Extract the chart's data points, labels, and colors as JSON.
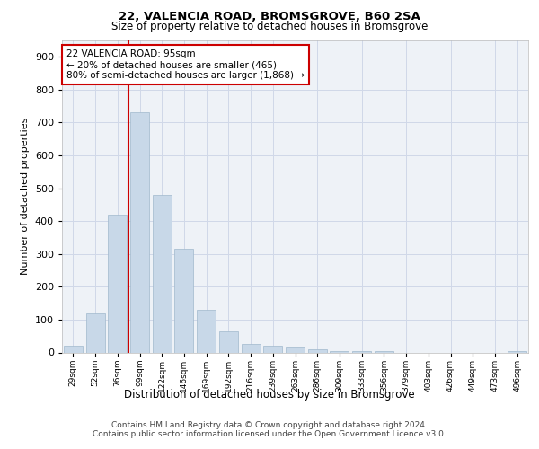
{
  "title1": "22, VALENCIA ROAD, BROMSGROVE, B60 2SA",
  "title2": "Size of property relative to detached houses in Bromsgrove",
  "xlabel": "Distribution of detached houses by size in Bromsgrove",
  "ylabel": "Number of detached properties",
  "categories": [
    "29sqm",
    "52sqm",
    "76sqm",
    "99sqm",
    "122sqm",
    "146sqm",
    "169sqm",
    "192sqm",
    "216sqm",
    "239sqm",
    "263sqm",
    "286sqm",
    "309sqm",
    "333sqm",
    "356sqm",
    "379sqm",
    "403sqm",
    "426sqm",
    "449sqm",
    "473sqm",
    "496sqm"
  ],
  "values": [
    20,
    120,
    420,
    730,
    480,
    315,
    130,
    65,
    25,
    20,
    18,
    10,
    5,
    3,
    3,
    0,
    0,
    0,
    0,
    0,
    5
  ],
  "bar_color": "#c8d8e8",
  "bar_edgecolor": "#a0b8cc",
  "red_line_x": 2.5,
  "annotation_text": "22 VALENCIA ROAD: 95sqm\n← 20% of detached houses are smaller (465)\n80% of semi-detached houses are larger (1,868) →",
  "annotation_box_color": "#ffffff",
  "annotation_box_edgecolor": "#cc0000",
  "red_line_color": "#cc0000",
  "grid_color": "#d0d8e8",
  "background_color": "#eef2f7",
  "footer1": "Contains HM Land Registry data © Crown copyright and database right 2024.",
  "footer2": "Contains public sector information licensed under the Open Government Licence v3.0.",
  "ylim": [
    0,
    950
  ],
  "yticks": [
    0,
    100,
    200,
    300,
    400,
    500,
    600,
    700,
    800,
    900
  ]
}
